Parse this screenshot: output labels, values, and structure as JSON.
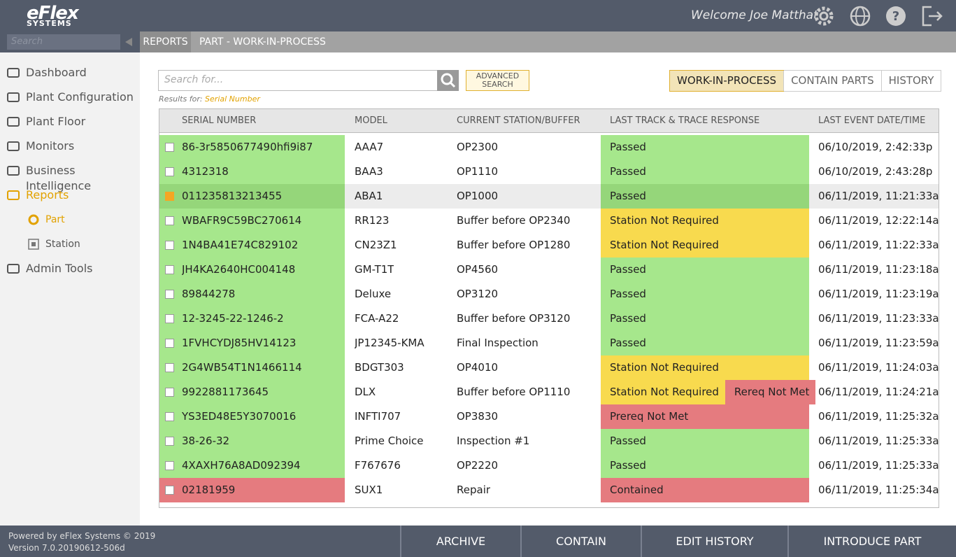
{
  "header": {
    "logo": "eFlex",
    "logo_sub": "SYSTEMS",
    "welcome": "Welcome Joe Matthat"
  },
  "sidebar": {
    "search_placeholder": "Search",
    "nav": [
      {
        "label": "Dashboard"
      },
      {
        "label": "Plant Configuration"
      },
      {
        "label": "Plant Floor"
      },
      {
        "label": "Monitors"
      },
      {
        "label": "Business Intelligence"
      },
      {
        "label": "Reports",
        "active": true
      },
      {
        "label": "Part",
        "sub": true,
        "active": true
      },
      {
        "label": "Station",
        "sub": true
      },
      {
        "label": "Admin Tools"
      }
    ]
  },
  "breadcrumb": [
    "REPORTS",
    "PART - WORK-IN-PROCESS"
  ],
  "search": {
    "placeholder": "Search for...",
    "advanced": [
      "ADVANCED",
      "SEARCH"
    ],
    "results_label": "Results for:",
    "results_value": "Serial Number"
  },
  "tabs": [
    {
      "label": "WORK-IN-PROCESS",
      "active": true
    },
    {
      "label": "CONTAIN PARTS"
    },
    {
      "label": "HISTORY"
    }
  ],
  "table": {
    "columns": [
      "SERIAL NUMBER",
      "MODEL",
      "CURRENT STATION/BUFFER",
      "LAST TRACK & TRACE RESPONSE",
      "LAST EVENT DATE/TIME"
    ],
    "rows": [
      {
        "serial": "86-3r5850677490hfi9i87",
        "serial_color": "#a6e78c",
        "model": "AAA7",
        "station": "OP2300",
        "responses": [
          {
            "text": "Passed",
            "color": "#a6e78c"
          }
        ],
        "date": "06/10/2019, 2:42:33p"
      },
      {
        "serial": "4312318",
        "serial_color": "#a6e78c",
        "model": "BAA3",
        "station": "OP1110",
        "responses": [
          {
            "text": "Passed",
            "color": "#a6e78c"
          }
        ],
        "date": "06/10/2019, 2:43:28p"
      },
      {
        "serial": "011235813213455",
        "serial_color": "#95d67a",
        "model": "ABA1",
        "station": "OP1000",
        "responses": [
          {
            "text": "Passed",
            "color": "#95d67a"
          }
        ],
        "date": "06/11/2019, 11:21:33a",
        "checked": true
      },
      {
        "serial": "WBAFR9C59BC270614",
        "serial_color": "#a6e78c",
        "model": "RR123",
        "station": "Buffer before OP2340",
        "responses": [
          {
            "text": "Station Not Required",
            "color": "#f8da4e"
          }
        ],
        "date": "06/11/2019, 12:22:14a"
      },
      {
        "serial": "1N4BA41E74C829102",
        "serial_color": "#a6e78c",
        "model": "CN23Z1",
        "station": "Buffer before OP1280",
        "responses": [
          {
            "text": "Station Not Required",
            "color": "#f8da4e"
          }
        ],
        "date": "06/11/2019, 11:22:33a"
      },
      {
        "serial": "JH4KA2640HC004148",
        "serial_color": "#a6e78c",
        "model": "GM-T1T",
        "station": "OP4560",
        "responses": [
          {
            "text": "Passed",
            "color": "#a6e78c"
          }
        ],
        "date": "06/11/2019, 11:23:18a"
      },
      {
        "serial": "89844278",
        "serial_color": "#a6e78c",
        "model": "Deluxe",
        "station": "OP3120",
        "responses": [
          {
            "text": "Passed",
            "color": "#a6e78c"
          }
        ],
        "date": "06/11/2019, 11:23:19a"
      },
      {
        "serial": "12-3245-22-1246-2",
        "serial_color": "#a6e78c",
        "model": "FCA-A22",
        "station": "Buffer before OP3120",
        "responses": [
          {
            "text": "Passed",
            "color": "#a6e78c"
          }
        ],
        "date": "06/11/2019, 11:23:33a"
      },
      {
        "serial": "1FVHCYDJ85HV14123",
        "serial_color": "#a6e78c",
        "model": "JP12345-KMA",
        "station": "Final Inspection",
        "responses": [
          {
            "text": "Passed",
            "color": "#a6e78c"
          }
        ],
        "date": "06/11/2019, 11:23:59a"
      },
      {
        "serial": "2G4WB54T1N1466114",
        "serial_color": "#a6e78c",
        "model": "BDGT303",
        "station": "OP4010",
        "responses": [
          {
            "text": "Station Not Required",
            "color": "#f8da4e"
          }
        ],
        "date": "06/11/2019, 11:24:03a"
      },
      {
        "serial": "9922881173645",
        "serial_color": "#a6e78c",
        "model": "DLX",
        "station": "Buffer before OP1110",
        "responses": [
          {
            "text": "Station Not Required",
            "color": "#f8da4e"
          },
          {
            "text": "Rereq Not Met",
            "color": "#e57b7f"
          }
        ],
        "date": "06/11/2019, 11:24:21a"
      },
      {
        "serial": "YS3ED48E5Y3070016",
        "serial_color": "#a6e78c",
        "model": "INFTI707",
        "station": "OP3830",
        "responses": [
          {
            "text": "Prereq Not Met",
            "color": "#e57b7f"
          }
        ],
        "date": "06/11/2019, 11:25:32a"
      },
      {
        "serial": "38-26-32",
        "serial_color": "#a6e78c",
        "model": "Prime Choice",
        "station": "Inspection #1",
        "responses": [
          {
            "text": "Passed",
            "color": "#a6e78c"
          }
        ],
        "date": "06/11/2019, 11:25:33a"
      },
      {
        "serial": "4XAXH76A8AD092394",
        "serial_color": "#a6e78c",
        "model": "F767676",
        "station": "OP2220",
        "responses": [
          {
            "text": "Passed",
            "color": "#a6e78c"
          }
        ],
        "date": "06/11/2019, 11:25:33a"
      },
      {
        "serial": "02181959",
        "serial_color": "#e57b7f",
        "model": "SUX1",
        "station": "Repair",
        "responses": [
          {
            "text": "Contained",
            "color": "#e57b7f"
          }
        ],
        "date": "06/11/2019, 11:25:34a"
      }
    ]
  },
  "footer": {
    "powered": "Powered by eFlex Systems © 2019",
    "version": "Version 7.0.20190612-506d",
    "buttons": [
      "ARCHIVE",
      "CONTAIN",
      "EDIT HISTORY",
      "INTRODUCE PART"
    ]
  }
}
